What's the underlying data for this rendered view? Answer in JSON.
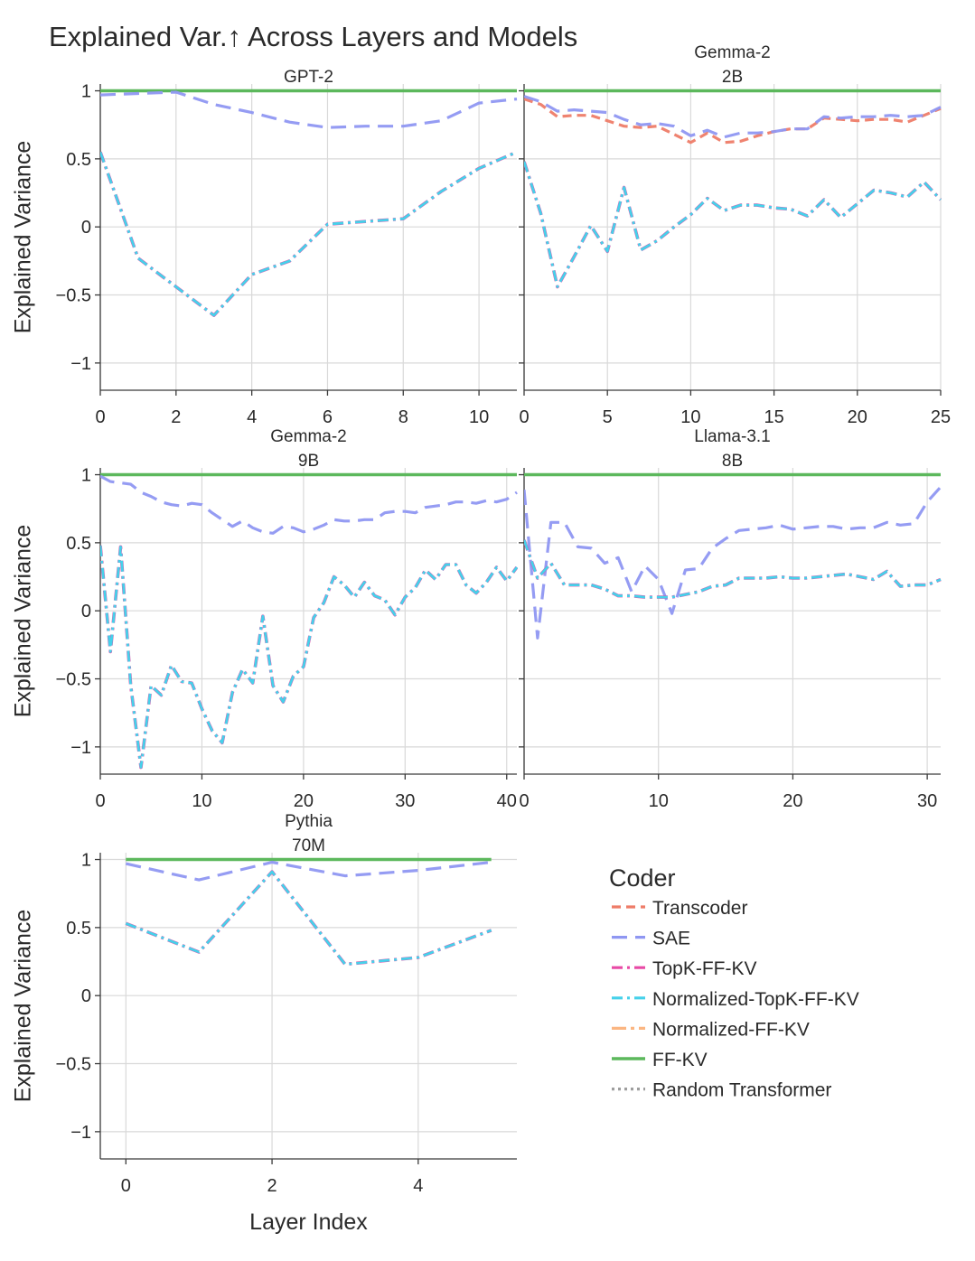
{
  "figure": {
    "title": "Explained Var.↑ Across Layers and Models",
    "xlabel": "Layer Index",
    "ylabel": "Explained Variance"
  },
  "legend": {
    "title": "Coder",
    "entries": [
      {
        "name": "Transcoder",
        "color": "#ee7c68",
        "dash": "dashed"
      },
      {
        "name": "SAE",
        "color": "#8f97f2",
        "dash": "longdash"
      },
      {
        "name": "TopK-FF-KV",
        "color": "#e84aa5",
        "dash": "dashdot"
      },
      {
        "name": "Normalized-TopK-FF-KV",
        "color": "#45d1ea",
        "dash": "dashdot"
      },
      {
        "name": "Normalized-FF-KV",
        "color": "#fbb682",
        "dash": "longdashdot"
      },
      {
        "name": "FF-KV",
        "color": "#5cb85c",
        "dash": "solid"
      },
      {
        "name": "Random Transformer",
        "color": "#9e9e9e",
        "dash": "dotted"
      }
    ]
  },
  "chart_data": [
    {
      "type": "line",
      "title": [
        "GPT-2"
      ],
      "xlabel": "",
      "ylabel": "Explained Variance",
      "xlim": [
        0,
        11
      ],
      "ylim": [
        -1.2,
        1.05
      ],
      "xticks": [
        0,
        2,
        4,
        6,
        8,
        10
      ],
      "yticks": [
        1,
        0.5,
        0,
        -0.5,
        -1
      ],
      "yticklabels": [
        "1",
        "0.5",
        "0",
        "−0.5",
        "−1"
      ],
      "x": [
        0,
        1,
        2,
        3,
        4,
        5,
        6,
        7,
        8,
        9,
        10,
        11
      ],
      "series": [
        {
          "name": "SAE",
          "values": [
            0.97,
            0.98,
            0.99,
            0.9,
            0.84,
            0.77,
            0.73,
            0.74,
            0.74,
            0.78,
            0.91,
            0.94
          ]
        },
        {
          "name": "TopK-FF-KV",
          "values": [
            0.55,
            -0.23,
            -0.44,
            -0.65,
            -0.35,
            -0.25,
            0.02,
            0.04,
            0.06,
            0.26,
            0.43,
            0.55
          ]
        },
        {
          "name": "Normalized-TopK-FF-KV",
          "values": [
            0.55,
            -0.23,
            -0.44,
            -0.65,
            -0.35,
            -0.25,
            0.02,
            0.04,
            0.06,
            0.26,
            0.43,
            0.55
          ]
        },
        {
          "name": "FF-KV",
          "values": [
            1,
            1,
            1,
            1,
            1,
            1,
            1,
            1,
            1,
            1,
            1,
            1
          ]
        }
      ]
    },
    {
      "type": "line",
      "title": [
        "Gemma-2",
        "2B"
      ],
      "xlabel": "",
      "ylabel": "",
      "xlim": [
        0,
        25
      ],
      "ylim": [
        -1.2,
        1.05
      ],
      "xticks": [
        0,
        5,
        10,
        15,
        20,
        25
      ],
      "yticks": [
        1,
        0.5,
        0,
        -0.5,
        -1
      ],
      "yticklabels": [],
      "x": [
        0,
        1,
        2,
        3,
        4,
        5,
        6,
        7,
        8,
        9,
        10,
        11,
        12,
        13,
        14,
        15,
        16,
        17,
        18,
        19,
        20,
        21,
        22,
        23,
        24,
        25
      ],
      "series": [
        {
          "name": "Transcoder",
          "values": [
            0.94,
            0.9,
            0.81,
            0.82,
            0.82,
            0.78,
            0.74,
            0.73,
            0.74,
            0.68,
            0.62,
            0.69,
            0.62,
            0.63,
            0.67,
            0.7,
            0.72,
            0.72,
            0.8,
            0.79,
            0.78,
            0.79,
            0.79,
            0.77,
            0.82,
            0.87
          ]
        },
        {
          "name": "SAE",
          "values": [
            0.96,
            0.92,
            0.85,
            0.86,
            0.85,
            0.84,
            0.79,
            0.75,
            0.76,
            0.74,
            0.67,
            0.71,
            0.66,
            0.69,
            0.69,
            0.7,
            0.72,
            0.72,
            0.81,
            0.8,
            0.81,
            0.81,
            0.82,
            0.81,
            0.82,
            0.88
          ]
        },
        {
          "name": "TopK-FF-KV",
          "values": [
            0.48,
            0.1,
            -0.44,
            -0.22,
            0.01,
            -0.18,
            0.29,
            -0.17,
            -0.1,
            0.0,
            0.09,
            0.21,
            0.12,
            0.16,
            0.16,
            0.14,
            0.13,
            0.08,
            0.2,
            0.07,
            0.17,
            0.27,
            0.25,
            0.22,
            0.33,
            0.2
          ]
        },
        {
          "name": "Normalized-TopK-FF-KV",
          "values": [
            0.48,
            0.1,
            -0.44,
            -0.22,
            0.01,
            -0.18,
            0.29,
            -0.17,
            -0.1,
            0.0,
            0.09,
            0.21,
            0.12,
            0.16,
            0.16,
            0.14,
            0.13,
            0.08,
            0.2,
            0.07,
            0.17,
            0.27,
            0.25,
            0.22,
            0.33,
            0.2
          ]
        },
        {
          "name": "FF-KV",
          "values": [
            1,
            1,
            1,
            1,
            1,
            1,
            1,
            1,
            1,
            1,
            1,
            1,
            1,
            1,
            1,
            1,
            1,
            1,
            1,
            1,
            1,
            1,
            1,
            1,
            1,
            1
          ]
        }
      ]
    },
    {
      "type": "line",
      "title": [
        "Gemma-2",
        "9B"
      ],
      "xlabel": "",
      "ylabel": "Explained Variance",
      "xlim": [
        0,
        41
      ],
      "ylim": [
        -1.2,
        1.05
      ],
      "xticks": [
        0,
        10,
        20,
        30,
        40
      ],
      "yticks": [
        1,
        0.5,
        0,
        -0.5,
        -1
      ],
      "yticklabels": [
        "1",
        "0.5",
        "0",
        "−0.5",
        "−1"
      ],
      "x": [
        0,
        1,
        2,
        3,
        4,
        5,
        6,
        7,
        8,
        9,
        10,
        11,
        12,
        13,
        14,
        15,
        16,
        17,
        18,
        19,
        20,
        21,
        22,
        23,
        24,
        25,
        26,
        27,
        28,
        29,
        30,
        31,
        32,
        33,
        34,
        35,
        36,
        37,
        38,
        39,
        40,
        41
      ],
      "series": [
        {
          "name": "SAE",
          "values": [
            0.99,
            0.95,
            0.94,
            0.93,
            0.87,
            0.84,
            0.8,
            0.78,
            0.77,
            0.79,
            0.78,
            0.72,
            0.67,
            0.62,
            0.66,
            0.61,
            0.58,
            0.57,
            0.62,
            0.61,
            0.58,
            0.6,
            0.63,
            0.67,
            0.66,
            0.66,
            0.67,
            0.67,
            0.72,
            0.73,
            0.73,
            0.72,
            0.76,
            0.77,
            0.78,
            0.8,
            0.8,
            0.79,
            0.81,
            0.8,
            0.82,
            0.87
          ]
        },
        {
          "name": "TopK-FF-KV",
          "values": [
            0.48,
            -0.3,
            0.47,
            -0.55,
            -1.15,
            -0.55,
            -0.62,
            -0.4,
            -0.52,
            -0.53,
            -0.72,
            -0.88,
            -0.97,
            -0.6,
            -0.43,
            -0.53,
            -0.04,
            -0.55,
            -0.67,
            -0.48,
            -0.41,
            -0.05,
            0.06,
            0.25,
            0.19,
            0.1,
            0.21,
            0.11,
            0.08,
            -0.03,
            0.1,
            0.17,
            0.3,
            0.23,
            0.34,
            0.34,
            0.19,
            0.13,
            0.21,
            0.32,
            0.22,
            0.32
          ]
        },
        {
          "name": "Normalized-TopK-FF-KV",
          "values": [
            0.48,
            -0.3,
            0.47,
            -0.55,
            -1.15,
            -0.55,
            -0.62,
            -0.4,
            -0.52,
            -0.53,
            -0.72,
            -0.88,
            -0.97,
            -0.6,
            -0.43,
            -0.53,
            -0.04,
            -0.55,
            -0.67,
            -0.48,
            -0.41,
            -0.05,
            0.06,
            0.25,
            0.19,
            0.1,
            0.21,
            0.11,
            0.08,
            -0.03,
            0.1,
            0.17,
            0.3,
            0.23,
            0.34,
            0.34,
            0.19,
            0.13,
            0.21,
            0.32,
            0.22,
            0.32
          ]
        },
        {
          "name": "FF-KV",
          "values": [
            1,
            1,
            1,
            1,
            1,
            1,
            1,
            1,
            1,
            1,
            1,
            1,
            1,
            1,
            1,
            1,
            1,
            1,
            1,
            1,
            1,
            1,
            1,
            1,
            1,
            1,
            1,
            1,
            1,
            1,
            1,
            1,
            1,
            1,
            1,
            1,
            1,
            1,
            1,
            1,
            1,
            1
          ]
        }
      ]
    },
    {
      "type": "line",
      "title": [
        "Llama-3.1",
        "8B"
      ],
      "xlabel": "",
      "ylabel": "",
      "xlim": [
        0,
        31
      ],
      "ylim": [
        -1.2,
        1.05
      ],
      "xticks": [
        0,
        10,
        20,
        30
      ],
      "yticks": [
        1,
        0.5,
        0,
        -0.5,
        -1
      ],
      "yticklabels": [],
      "x": [
        0,
        1,
        2,
        3,
        4,
        5,
        6,
        7,
        8,
        9,
        10,
        11,
        12,
        13,
        14,
        15,
        16,
        17,
        18,
        19,
        20,
        21,
        22,
        23,
        24,
        25,
        26,
        27,
        28,
        29,
        30,
        31
      ],
      "series": [
        {
          "name": "SAE",
          "values": [
            0.89,
            -0.2,
            0.65,
            0.65,
            0.47,
            0.46,
            0.35,
            0.39,
            0.14,
            0.33,
            0.23,
            -0.02,
            0.3,
            0.31,
            0.46,
            0.53,
            0.59,
            0.6,
            0.61,
            0.63,
            0.6,
            0.61,
            0.62,
            0.62,
            0.6,
            0.61,
            0.61,
            0.65,
            0.63,
            0.64,
            0.8,
            0.91
          ]
        },
        {
          "name": "TopK-FF-KV",
          "values": [
            0.52,
            0.24,
            0.35,
            0.19,
            0.19,
            0.19,
            0.16,
            0.11,
            0.11,
            0.1,
            0.1,
            0.1,
            0.12,
            0.14,
            0.18,
            0.19,
            0.24,
            0.24,
            0.24,
            0.25,
            0.24,
            0.24,
            0.25,
            0.26,
            0.27,
            0.25,
            0.23,
            0.29,
            0.18,
            0.19,
            0.19,
            0.23
          ]
        },
        {
          "name": "Normalized-TopK-FF-KV",
          "values": [
            0.52,
            0.24,
            0.35,
            0.19,
            0.19,
            0.19,
            0.16,
            0.11,
            0.11,
            0.1,
            0.1,
            0.1,
            0.12,
            0.14,
            0.18,
            0.19,
            0.24,
            0.24,
            0.24,
            0.25,
            0.24,
            0.24,
            0.25,
            0.26,
            0.27,
            0.25,
            0.23,
            0.29,
            0.18,
            0.19,
            0.19,
            0.23
          ]
        },
        {
          "name": "FF-KV",
          "values": [
            1,
            1,
            1,
            1,
            1,
            1,
            1,
            1,
            1,
            1,
            1,
            1,
            1,
            1,
            1,
            1,
            1,
            1,
            1,
            1,
            1,
            1,
            1,
            1,
            1,
            1,
            1,
            1,
            1,
            1,
            1,
            1
          ]
        }
      ]
    },
    {
      "type": "line",
      "title": [
        "Pythia",
        "70M"
      ],
      "xlabel": "Layer Index",
      "ylabel": "Explained Variance",
      "xlim": [
        -0.35,
        5.35
      ],
      "ylim": [
        -1.2,
        1.05
      ],
      "xticks": [
        0,
        2,
        4
      ],
      "yticks": [
        1,
        0.5,
        0,
        -0.5,
        -1
      ],
      "yticklabels": [
        "1",
        "0.5",
        "0",
        "−0.5",
        "−1"
      ],
      "x": [
        0,
        1,
        2,
        3,
        4,
        5
      ],
      "series": [
        {
          "name": "SAE",
          "values": [
            0.97,
            0.85,
            0.98,
            0.88,
            0.92,
            0.98
          ]
        },
        {
          "name": "TopK-FF-KV",
          "values": [
            0.53,
            0.32,
            0.91,
            0.23,
            0.28,
            0.48
          ]
        },
        {
          "name": "Normalized-TopK-FF-KV",
          "values": [
            0.53,
            0.32,
            0.91,
            0.23,
            0.28,
            0.48
          ]
        },
        {
          "name": "FF-KV",
          "values": [
            1,
            1,
            1,
            1,
            1,
            1
          ]
        }
      ]
    }
  ]
}
